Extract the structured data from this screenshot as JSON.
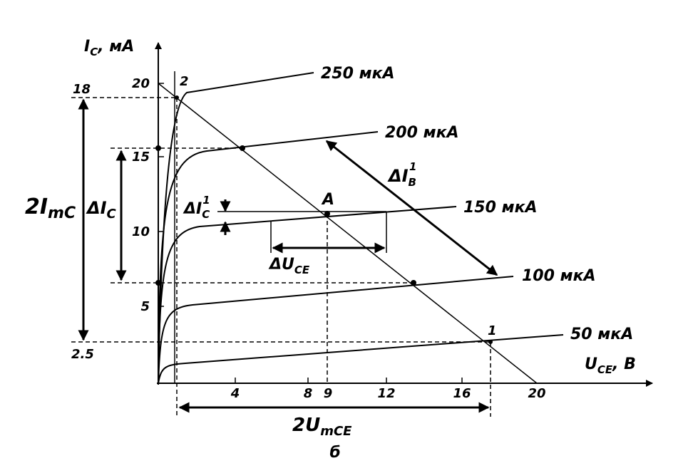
{
  "axes": {
    "y_label": {
      "main": "I",
      "sub": "C",
      "unit": ", мА"
    },
    "x_label": {
      "main": "U",
      "sub": "CE",
      "unit": ", B"
    },
    "y_ticks": [
      "20",
      "15",
      "10",
      "5"
    ],
    "x_ticks": [
      "4",
      "8",
      "9",
      "12",
      "16",
      "20"
    ],
    "left_marks": [
      "18",
      "2.5"
    ]
  },
  "curves": [
    "250 мкА",
    "200 мкА",
    "150 мкА",
    "100 мкА",
    "50 мкА"
  ],
  "points": [
    "2",
    "A",
    "1"
  ],
  "annotations": {
    "two_imc": {
      "main": "2I",
      "sub": "mC"
    },
    "delta_ic": {
      "main": "ΔI",
      "sub": "C"
    },
    "delta_ic1": {
      "main": "ΔI",
      "sub": "C",
      "sup": "1"
    },
    "delta_uce": {
      "main": "ΔU",
      "sub": "CE"
    },
    "delta_ib1": {
      "main": "ΔI",
      "sub": "B",
      "sup": "1"
    },
    "two_umce": {
      "main": "2U",
      "sub": "mCE"
    },
    "caption": "б"
  }
}
